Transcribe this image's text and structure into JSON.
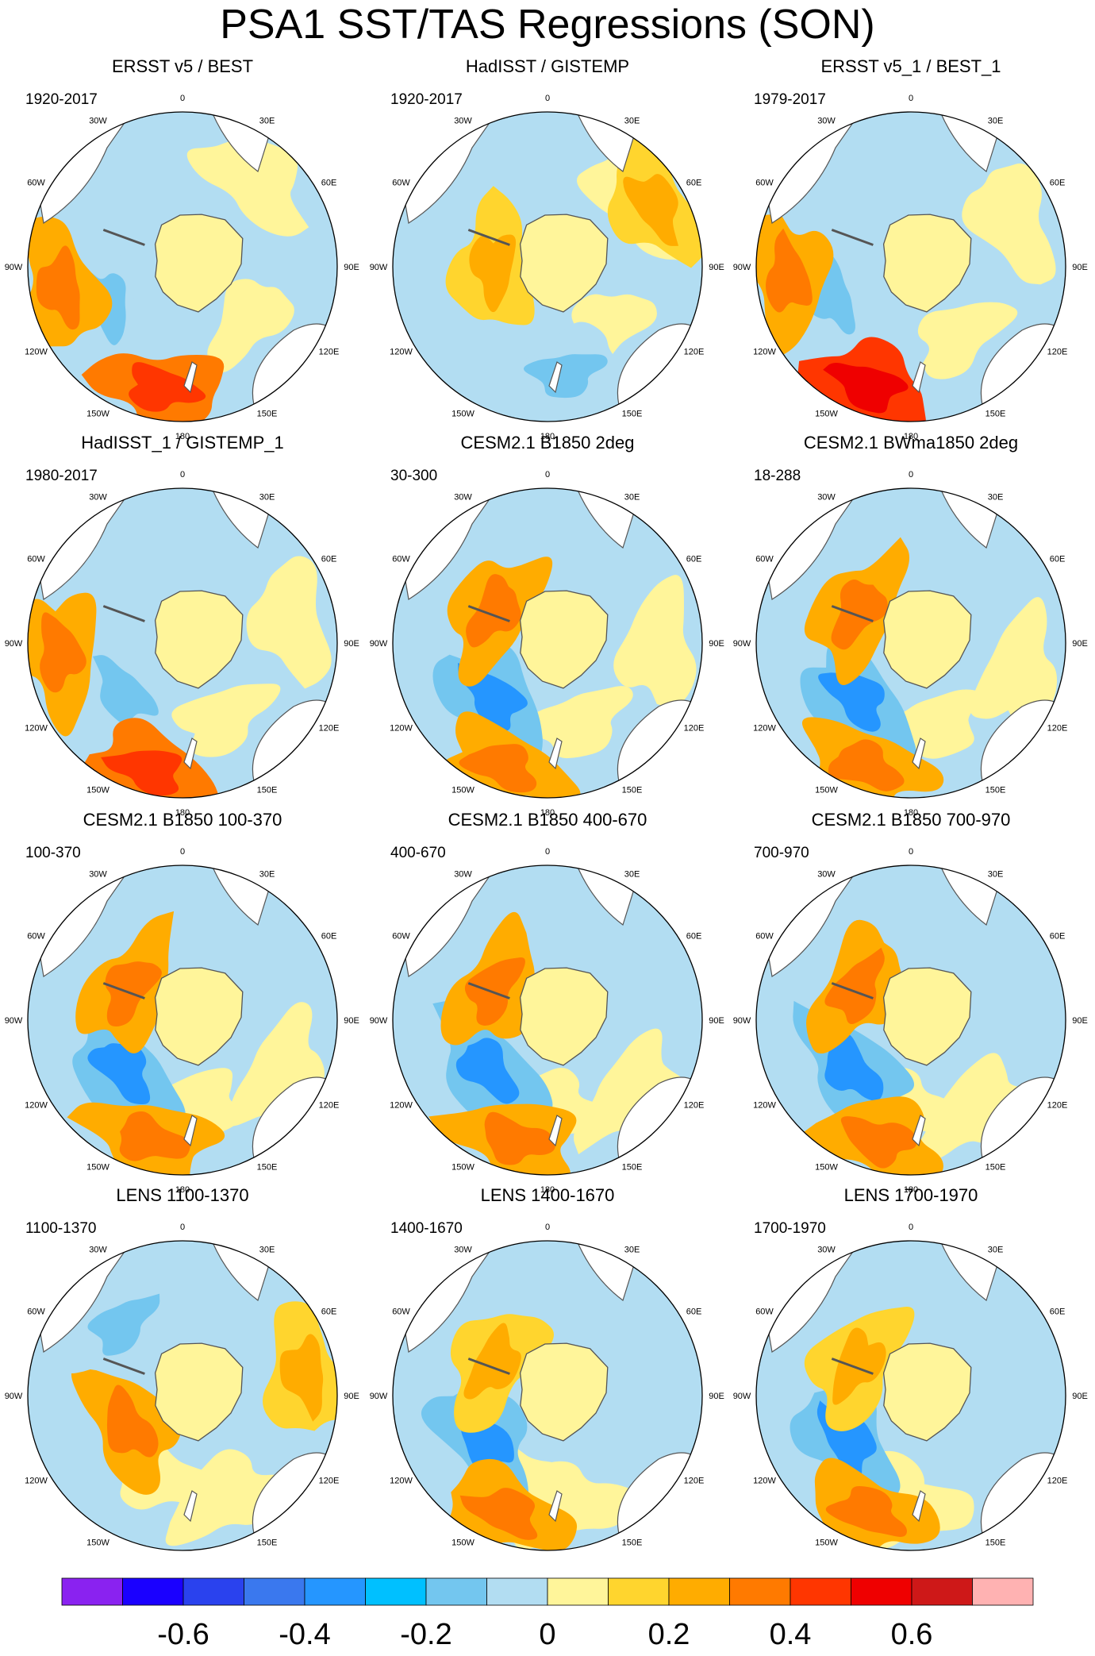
{
  "title": "PSA1 SST/TAS Regressions (SON)",
  "lon_labels": [
    "0",
    "30E",
    "60E",
    "90E",
    "120E",
    "150E",
    "180",
    "150W",
    "120W",
    "90W",
    "60W",
    "30W"
  ],
  "panels": [
    {
      "title": "ERSST v5 / BEST",
      "period": "1920-2017",
      "fields": [
        {
          "value": -0.1,
          "lon": 245,
          "r": 0.55
        },
        {
          "value": 0.3,
          "lon": 190,
          "r": 0.8
        },
        {
          "value": 0.2,
          "lon": 260,
          "r": 0.8
        }
      ]
    },
    {
      "title": "HadISST / GISTEMP",
      "period": "1920-2017",
      "fields": [
        {
          "value": 0.1,
          "lon": 270,
          "r": 0.35
        },
        {
          "value": -0.05,
          "lon": 170,
          "r": 0.7
        },
        {
          "value": 0.1,
          "lon": 60,
          "r": 0.8
        }
      ]
    },
    {
      "title": "ERSST v5_1 / BEST_1",
      "period": "1979-2017",
      "fields": [
        {
          "value": -0.1,
          "lon": 250,
          "r": 0.55
        },
        {
          "value": 0.4,
          "lon": 200,
          "r": 0.82
        },
        {
          "value": 0.2,
          "lon": 265,
          "r": 0.8
        }
      ]
    },
    {
      "title": "HadISST_1 / GISTEMP_1",
      "period": "1980-2017",
      "fields": [
        {
          "value": -0.1,
          "lon": 230,
          "r": 0.5
        },
        {
          "value": 0.3,
          "lon": 195,
          "r": 0.85
        },
        {
          "value": 0.2,
          "lon": 265,
          "r": 0.8
        }
      ]
    },
    {
      "title": "CESM2.1 B1850 2deg",
      "period": "30-300",
      "fields": [
        {
          "value": -0.2,
          "lon": 225,
          "r": 0.5
        },
        {
          "value": 0.2,
          "lon": 200,
          "r": 0.85
        },
        {
          "value": 0.2,
          "lon": 300,
          "r": 0.4
        }
      ]
    },
    {
      "title": "CESM2.1 BWma1850 2deg",
      "period": "18-288",
      "fields": [
        {
          "value": -0.2,
          "lon": 225,
          "r": 0.5
        },
        {
          "value": 0.2,
          "lon": 200,
          "r": 0.85
        },
        {
          "value": 0.2,
          "lon": 300,
          "r": 0.4
        }
      ]
    },
    {
      "title": "CESM2.1 B1850 100-370",
      "period": "100-370",
      "fields": [
        {
          "value": -0.2,
          "lon": 230,
          "r": 0.5
        },
        {
          "value": 0.2,
          "lon": 195,
          "r": 0.8
        },
        {
          "value": 0.2,
          "lon": 300,
          "r": 0.4
        }
      ]
    },
    {
      "title": "CESM2.1 B1850 400-670",
      "period": "400-670",
      "fields": [
        {
          "value": -0.2,
          "lon": 230,
          "r": 0.5
        },
        {
          "value": 0.2,
          "lon": 195,
          "r": 0.8
        },
        {
          "value": 0.2,
          "lon": 300,
          "r": 0.4
        }
      ]
    },
    {
      "title": "CESM2.1 B1850 700-970",
      "period": "700-970",
      "fields": [
        {
          "value": -0.2,
          "lon": 230,
          "r": 0.5
        },
        {
          "value": 0.2,
          "lon": 195,
          "r": 0.8
        },
        {
          "value": 0.2,
          "lon": 300,
          "r": 0.4
        }
      ]
    },
    {
      "title": "LENS 1100-1370",
      "period": "1100-1370",
      "fields": [
        {
          "value": 0.2,
          "lon": 240,
          "r": 0.4
        },
        {
          "value": -0.1,
          "lon": 320,
          "r": 0.6
        },
        {
          "value": 0.1,
          "lon": 80,
          "r": 0.8
        }
      ]
    },
    {
      "title": "LENS 1400-1670",
      "period": "1400-1670",
      "fields": [
        {
          "value": -0.2,
          "lon": 235,
          "r": 0.5
        },
        {
          "value": 0.2,
          "lon": 200,
          "r": 0.8
        },
        {
          "value": 0.1,
          "lon": 300,
          "r": 0.4
        }
      ]
    },
    {
      "title": "LENS 1700-1970",
      "period": "1700-1970",
      "fields": [
        {
          "value": -0.2,
          "lon": 235,
          "r": 0.5
        },
        {
          "value": 0.2,
          "lon": 200,
          "r": 0.8
        },
        {
          "value": 0.1,
          "lon": 300,
          "r": 0.4
        }
      ]
    }
  ],
  "colorbar": {
    "colors": [
      "#8a22f0",
      "#1a00ff",
      "#2a42ee",
      "#3a78ee",
      "#2596ff",
      "#00c0ff",
      "#73c6ef",
      "#b2ddf2",
      "#fff59a",
      "#ffd52e",
      "#ffac00",
      "#ff7a00",
      "#ff3600",
      "#ef0000",
      "#ce1818",
      "#ffb2b2"
    ],
    "bounds": [
      -0.7,
      -0.6,
      -0.5,
      -0.4,
      -0.3,
      -0.2,
      -0.1,
      0.0,
      0.1,
      0.2,
      0.3,
      0.4,
      0.5,
      0.6,
      0.7
    ],
    "tick_labels": [
      "-0.6",
      "-0.4",
      "-0.2",
      "0",
      "0.2",
      "0.4",
      "0.6"
    ]
  }
}
